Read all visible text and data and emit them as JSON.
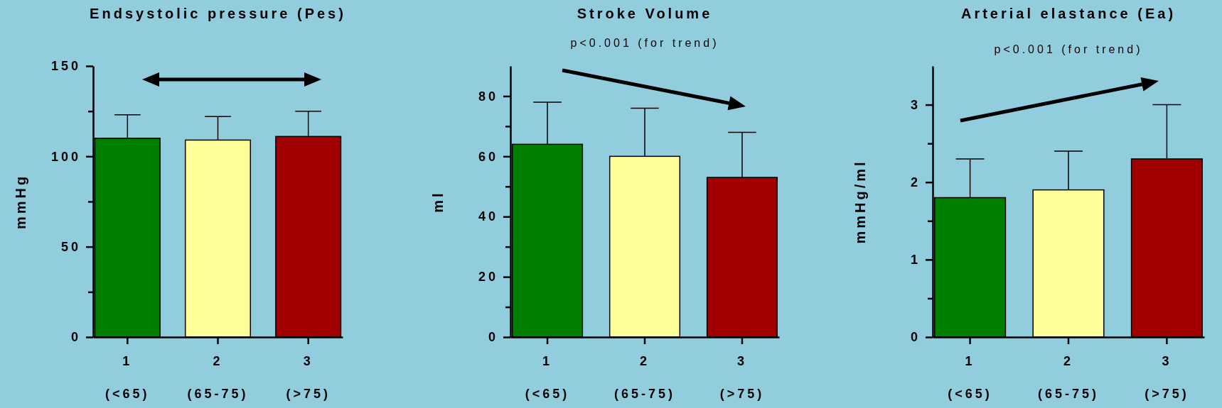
{
  "chart_data": [
    {
      "type": "bar",
      "title": "Endsystolic pressure (Pes)",
      "ylabel": "mmHg",
      "categories": [
        "1\n(<65)",
        "2\n(65-75)",
        "3\n(>75)"
      ],
      "values": [
        110,
        109,
        111
      ],
      "colors": [
        "#007f00",
        "#ffff99",
        "#a00000"
      ],
      "errors": [
        [
          110,
          123
        ],
        [
          109,
          122
        ],
        [
          111,
          125
        ]
      ],
      "ylim": [
        0,
        150
      ],
      "yticks": [
        0,
        {
          "value": 25,
          "label": null
        },
        50,
        {
          "value": 75,
          "label": null
        },
        100,
        {
          "value": 125,
          "label": null
        },
        150
      ]
    },
    {
      "type": "bar",
      "title": "Stroke Volume",
      "ylabel": "ml",
      "categories": [
        "1\n(<65)",
        "2\n(65-75)",
        "3\n(>75)"
      ],
      "values": [
        64,
        60,
        53
      ],
      "colors": [
        "#007f00",
        "#ffff99",
        "#a00000"
      ],
      "errors": [
        [
          64,
          78
        ],
        [
          60,
          76
        ],
        [
          53,
          68
        ]
      ],
      "ylim": [
        0,
        90
      ],
      "yticks": [
        0,
        {
          "value": 10,
          "label": null
        },
        20,
        {
          "value": 30,
          "label": null
        },
        40,
        {
          "value": 50,
          "label": null
        },
        60,
        {
          "value": 70,
          "label": null
        },
        80
      ],
      "annotations": [
        "p<0.001 (for trend)"
      ]
    },
    {
      "type": "bar",
      "title": "Arterial elastance (Ea)",
      "ylabel": "mmHg/ml",
      "categories": [
        "1\n(<65)",
        "2\n(65-75)",
        "3\n(>75)"
      ],
      "values": [
        1.8,
        1.9,
        2.3
      ],
      "colors": [
        "#007f00",
        "#ffff99",
        "#a00000"
      ],
      "errors": [
        [
          1.8,
          2.3
        ],
        [
          1.9,
          2.4
        ],
        [
          2.3,
          3.0
        ]
      ],
      "ylim": [
        0,
        3.5
      ],
      "yticks": [
        0,
        {
          "value": 0.5,
          "label": null
        },
        1,
        {
          "value": 1.5,
          "label": null
        },
        2,
        {
          "value": 2.5,
          "label": null
        },
        3
      ],
      "annotations": [
        "p<0.001 (for trend)"
      ]
    }
  ]
}
